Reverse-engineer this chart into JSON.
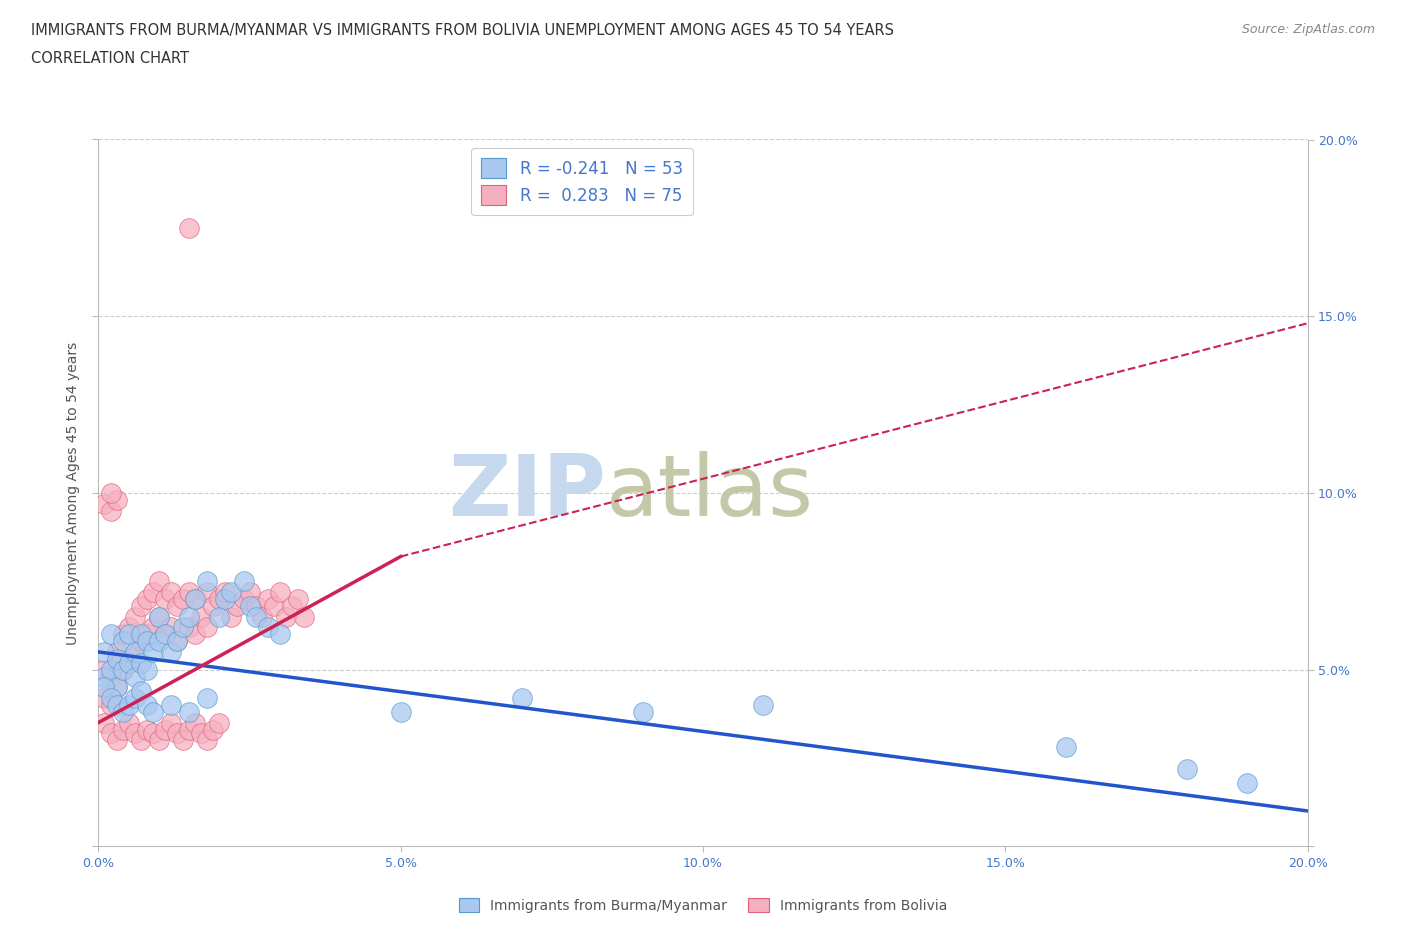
{
  "title_line1": "IMMIGRANTS FROM BURMA/MYANMAR VS IMMIGRANTS FROM BOLIVIA UNEMPLOYMENT AMONG AGES 45 TO 54 YEARS",
  "title_line2": "CORRELATION CHART",
  "source_text": "Source: ZipAtlas.com",
  "ylabel": "Unemployment Among Ages 45 to 54 years",
  "xlim": [
    0.0,
    0.2
  ],
  "ylim": [
    0.0,
    0.2
  ],
  "xticks": [
    0.0,
    0.05,
    0.1,
    0.15,
    0.2
  ],
  "yticks": [
    0.0,
    0.05,
    0.1,
    0.15,
    0.2
  ],
  "series_burma": {
    "name": "Immigrants from Burma/Myanmar",
    "color": "#a8c8f0",
    "edge_color": "#5599cc",
    "R": -0.241,
    "N": 53,
    "trend_color": "#2255cc",
    "x": [
      0.001,
      0.001,
      0.002,
      0.002,
      0.003,
      0.003,
      0.004,
      0.004,
      0.005,
      0.005,
      0.006,
      0.006,
      0.007,
      0.007,
      0.008,
      0.008,
      0.009,
      0.01,
      0.01,
      0.011,
      0.012,
      0.013,
      0.014,
      0.015,
      0.016,
      0.018,
      0.02,
      0.021,
      0.022,
      0.024,
      0.025,
      0.026,
      0.028,
      0.03,
      0.001,
      0.002,
      0.003,
      0.004,
      0.005,
      0.006,
      0.007,
      0.008,
      0.009,
      0.012,
      0.015,
      0.018,
      0.05,
      0.07,
      0.09,
      0.11,
      0.16,
      0.18,
      0.19
    ],
    "y": [
      0.055,
      0.048,
      0.06,
      0.05,
      0.053,
      0.045,
      0.058,
      0.05,
      0.06,
      0.052,
      0.055,
      0.048,
      0.06,
      0.052,
      0.058,
      0.05,
      0.055,
      0.065,
      0.058,
      0.06,
      0.055,
      0.058,
      0.062,
      0.065,
      0.07,
      0.075,
      0.065,
      0.07,
      0.072,
      0.075,
      0.068,
      0.065,
      0.062,
      0.06,
      0.045,
      0.042,
      0.04,
      0.038,
      0.04,
      0.042,
      0.044,
      0.04,
      0.038,
      0.04,
      0.038,
      0.042,
      0.038,
      0.042,
      0.038,
      0.04,
      0.028,
      0.022,
      0.018
    ],
    "trend_x0": 0.0,
    "trend_y0": 0.055,
    "trend_x1": 0.2,
    "trend_y1": 0.01
  },
  "series_bolivia": {
    "name": "Immigrants from Bolivia",
    "color": "#f5b0c0",
    "edge_color": "#e06080",
    "R": 0.283,
    "N": 75,
    "trend_color": "#cc2255",
    "x": [
      0.001,
      0.001,
      0.002,
      0.002,
      0.003,
      0.003,
      0.004,
      0.004,
      0.005,
      0.005,
      0.006,
      0.006,
      0.007,
      0.007,
      0.008,
      0.008,
      0.009,
      0.009,
      0.01,
      0.01,
      0.011,
      0.011,
      0.012,
      0.012,
      0.013,
      0.013,
      0.014,
      0.015,
      0.015,
      0.016,
      0.016,
      0.017,
      0.018,
      0.018,
      0.019,
      0.02,
      0.021,
      0.022,
      0.023,
      0.024,
      0.025,
      0.026,
      0.027,
      0.028,
      0.029,
      0.03,
      0.031,
      0.032,
      0.033,
      0.034,
      0.001,
      0.002,
      0.003,
      0.004,
      0.005,
      0.006,
      0.007,
      0.008,
      0.009,
      0.01,
      0.011,
      0.012,
      0.013,
      0.014,
      0.015,
      0.016,
      0.017,
      0.018,
      0.019,
      0.02,
      0.001,
      0.002,
      0.003,
      0.002,
      0.015
    ],
    "y": [
      0.05,
      0.042,
      0.048,
      0.04,
      0.055,
      0.045,
      0.06,
      0.05,
      0.062,
      0.052,
      0.065,
      0.055,
      0.068,
      0.058,
      0.07,
      0.06,
      0.072,
      0.062,
      0.075,
      0.065,
      0.07,
      0.06,
      0.072,
      0.062,
      0.068,
      0.058,
      0.07,
      0.072,
      0.062,
      0.07,
      0.06,
      0.065,
      0.072,
      0.062,
      0.068,
      0.07,
      0.072,
      0.065,
      0.068,
      0.07,
      0.072,
      0.068,
      0.065,
      0.07,
      0.068,
      0.072,
      0.065,
      0.068,
      0.07,
      0.065,
      0.035,
      0.032,
      0.03,
      0.033,
      0.035,
      0.032,
      0.03,
      0.033,
      0.032,
      0.03,
      0.033,
      0.035,
      0.032,
      0.03,
      0.033,
      0.035,
      0.032,
      0.03,
      0.033,
      0.035,
      0.097,
      0.095,
      0.098,
      0.1,
      0.175
    ],
    "trend_x0": 0.0,
    "trend_y0": 0.035,
    "trend_solid_x1": 0.05,
    "trend_solid_y1": 0.082,
    "trend_x1": 0.2,
    "trend_y1": 0.148
  },
  "watermark_zip": "ZIP",
  "watermark_atlas": "atlas",
  "watermark_color_zip": "#c5d8ee",
  "watermark_color_atlas": "#c5c8a8",
  "background_color": "#ffffff",
  "grid_color": "#cccccc",
  "tick_color": "#4477cc",
  "axis_color": "#bbbbbb",
  "title_color": "#333333"
}
